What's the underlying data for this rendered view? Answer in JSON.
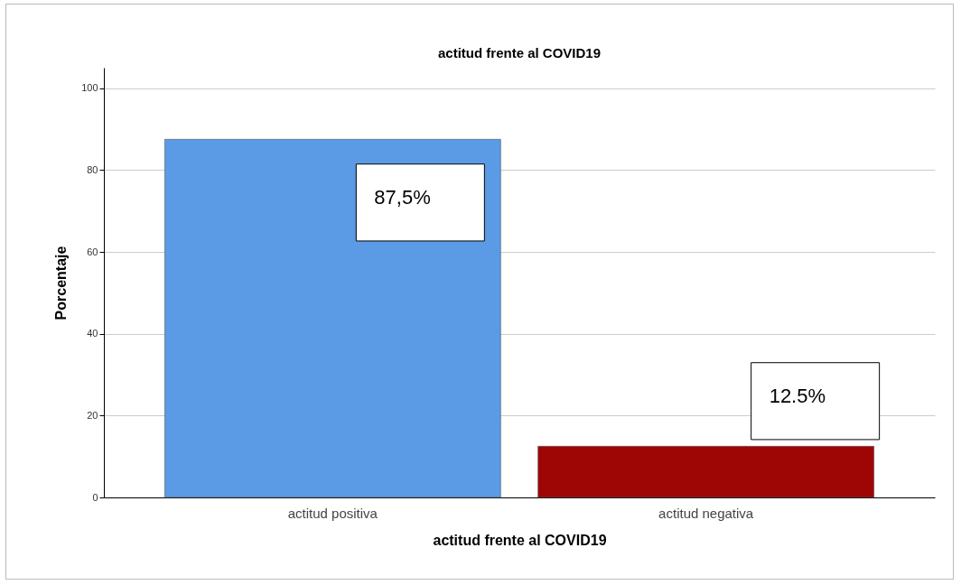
{
  "chart_data": {
    "type": "bar",
    "title": "actitud frente al COVID19",
    "xlabel": "actitud frente al COVID19",
    "ylabel": "Porcentaje",
    "categories": [
      "actitud positiva",
      "actitud negativa"
    ],
    "values": [
      87.5,
      12.5
    ],
    "colors": [
      "#5b9be6",
      "#9e0505"
    ],
    "value_labels": [
      "87,5%",
      "12.5%"
    ],
    "ylim": [
      0,
      105
    ],
    "yticks": [
      0,
      20,
      40,
      60,
      80,
      100
    ],
    "grid": "y"
  }
}
